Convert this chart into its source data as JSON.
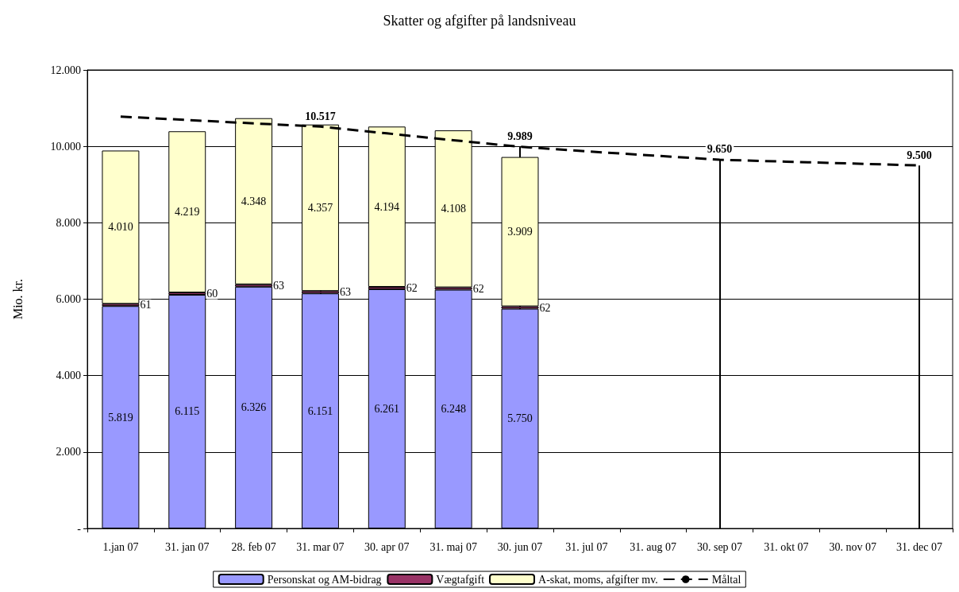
{
  "chart_data": {
    "type": "bar",
    "title": "Skatter og afgifter på landsniveau",
    "ylabel": "Mio. kr.",
    "stacked": true,
    "categories": [
      "1.jan 07",
      "31. jan 07",
      "28. feb 07",
      "31. mar 07",
      "30. apr 07",
      "31. maj 07",
      "30. jun 07",
      "31. jul 07",
      "31. aug 07",
      "30. sep 07",
      "31. okt 07",
      "30. nov 07",
      "31. dec 07"
    ],
    "series": [
      {
        "name": "Personskat og AM-bidrag",
        "color": "#9999ff",
        "values": [
          5819,
          6115,
          6326,
          6151,
          6261,
          6248,
          5750,
          null,
          null,
          null,
          null,
          null,
          null
        ],
        "value_labels": [
          "5.819",
          "6.115",
          "6.326",
          "6.151",
          "6.261",
          "6.248",
          "5.750",
          null,
          null,
          null,
          null,
          null,
          null
        ]
      },
      {
        "name": "Vægtafgift",
        "color": "#993366",
        "values": [
          61,
          60,
          63,
          63,
          62,
          62,
          62,
          null,
          null,
          null,
          null,
          null,
          null
        ],
        "value_labels": [
          "61",
          "60",
          "63",
          "63",
          "62",
          "62",
          "62",
          null,
          null,
          null,
          null,
          null,
          null
        ]
      },
      {
        "name": "A-skat, moms, afgifter mv.",
        "color": "#ffffcc",
        "values": [
          4010,
          4219,
          4348,
          4357,
          4194,
          4108,
          3909,
          null,
          null,
          null,
          null,
          null,
          null
        ],
        "value_labels": [
          "4.010",
          "4.219",
          "4.348",
          "4.357",
          "4.194",
          "4.108",
          "3.909",
          null,
          null,
          null,
          null,
          null,
          null
        ]
      },
      {
        "name": "Måltal",
        "type": "line",
        "color": "#000000",
        "line_style": "dashed",
        "marker": "none",
        "values": [
          10780,
          10690,
          10600,
          10517,
          10340,
          10160,
          9989,
          9870,
          9760,
          9650,
          9600,
          9550,
          9500
        ]
      }
    ],
    "ref_lines": [
      {
        "axis": "x",
        "value": "31. mar 07",
        "label": "10.517"
      },
      {
        "axis": "x",
        "value": "30. jun 07",
        "label": "9.989"
      },
      {
        "axis": "x",
        "value": "30. sep 07",
        "label": "9.650"
      },
      {
        "axis": "x",
        "value": "31. dec 07",
        "label": "9.500"
      }
    ],
    "ylim": [
      0,
      12000
    ],
    "yticks": [
      {
        "value": 0,
        "label": "-"
      },
      {
        "value": 2000,
        "label": "2.000"
      },
      {
        "value": 4000,
        "label": "4.000"
      },
      {
        "value": 6000,
        "label": "6.000"
      },
      {
        "value": 8000,
        "label": "8.000"
      },
      {
        "value": 10000,
        "label": "10.000"
      },
      {
        "value": 12000,
        "label": "12.000"
      }
    ],
    "grid": "y",
    "legend": "bottom"
  }
}
